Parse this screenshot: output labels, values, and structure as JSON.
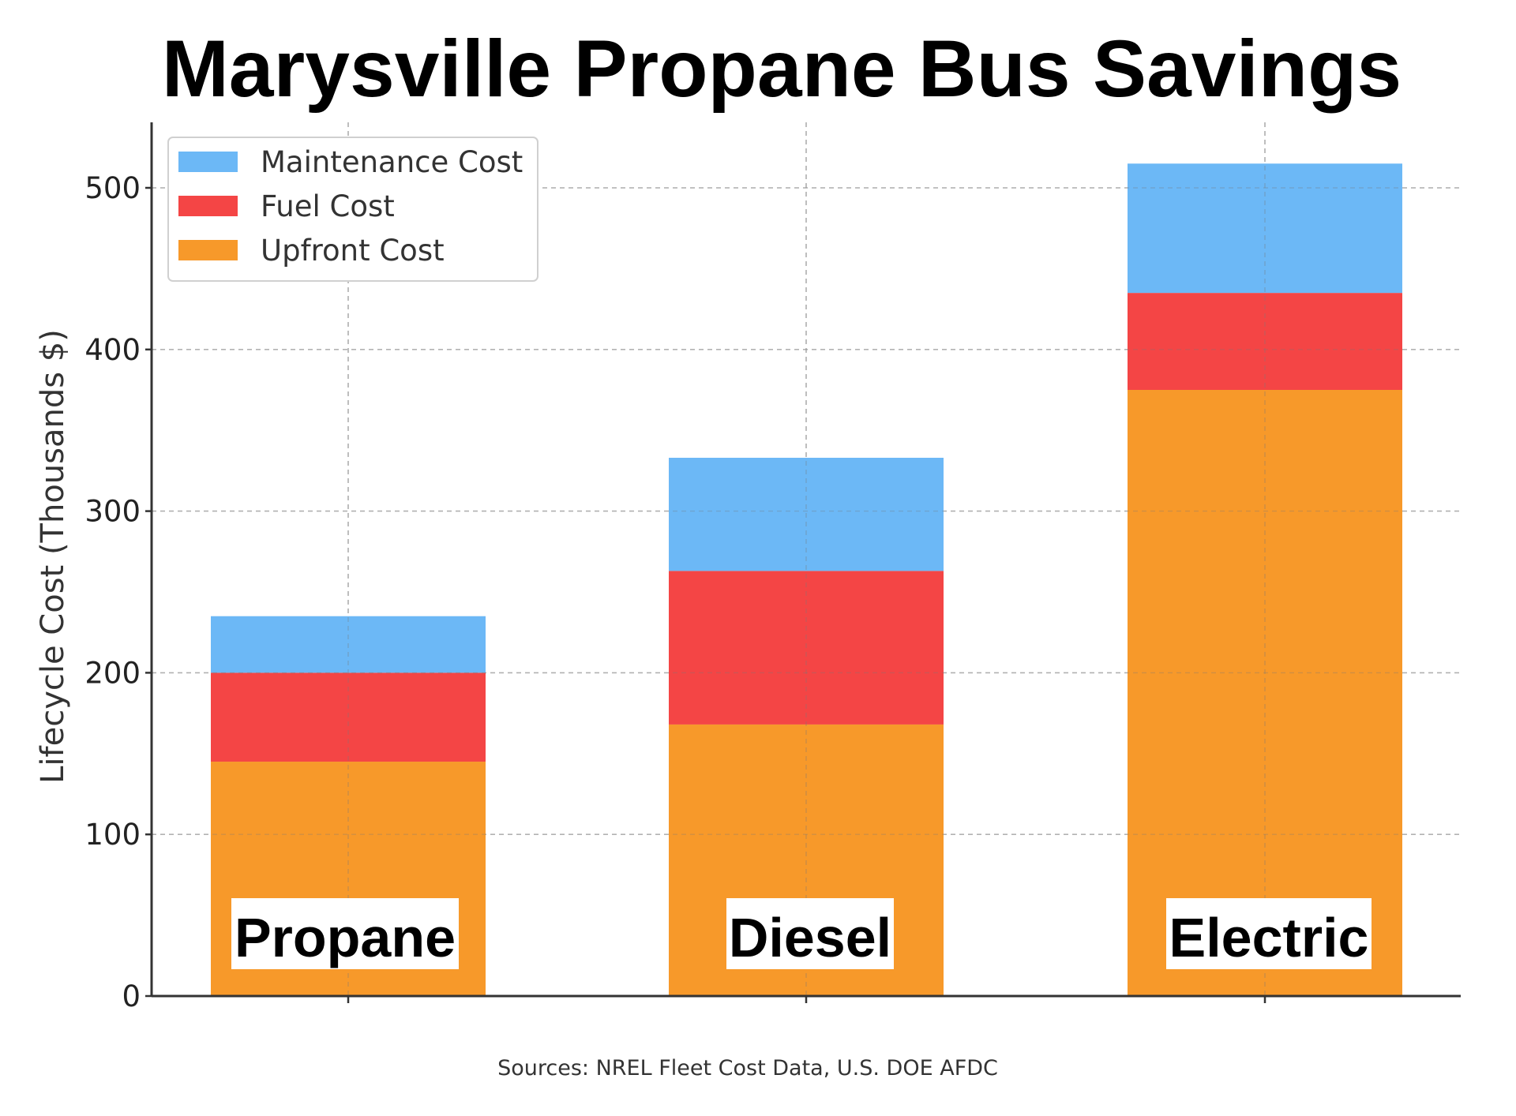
{
  "chart_data": {
    "type": "bar",
    "stacked": true,
    "title": "Marysville Propane Bus Savings",
    "ylabel": "Lifecycle Cost (Thousands $)",
    "xlabel": "",
    "categories": [
      "Propane",
      "Diesel",
      "Electric"
    ],
    "series": [
      {
        "name": "Upfront Cost",
        "values": [
          145,
          168,
          375
        ],
        "color": "#f7992a"
      },
      {
        "name": "Fuel Cost",
        "values": [
          55,
          95,
          60
        ],
        "color": "#f44545"
      },
      {
        "name": "Maintenance Cost",
        "values": [
          35,
          70,
          80
        ],
        "color": "#6cb8f6"
      }
    ],
    "ylim": [
      0,
      540
    ],
    "yticks": [
      0,
      100,
      200,
      300,
      400,
      500
    ],
    "grid": true,
    "legend_position": "top-left",
    "legend_order": [
      "Maintenance Cost",
      "Fuel Cost",
      "Upfront Cost"
    ],
    "category_labels_inside_bars": true
  },
  "footer": {
    "source": "Sources: NREL Fleet Cost Data, U.S. DOE AFDC"
  }
}
